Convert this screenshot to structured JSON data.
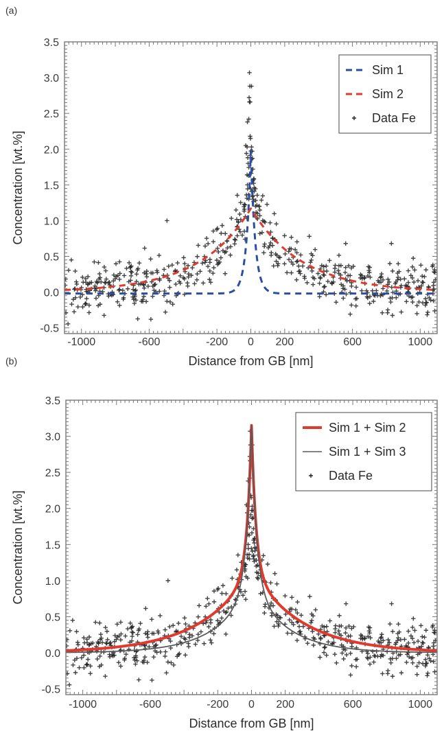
{
  "chart_data": [
    {
      "panel_label": "(a)",
      "type": "scatter",
      "title": "",
      "xlabel": "Distance from GB [nm]",
      "ylabel": "Concentration [wt.%]",
      "xlim": [
        -1100,
        1100
      ],
      "ylim": [
        -0.58,
        3.5
      ],
      "xticks": [
        -1000,
        -600,
        -200,
        0,
        200,
        600,
        1000
      ],
      "xtick_labels": [
        "-1000",
        "-600",
        "-200",
        "0",
        "200",
        "600",
        "1000"
      ],
      "yticks": [
        -0.5,
        0.0,
        0.5,
        1.0,
        1.5,
        2.0,
        2.5,
        3.0,
        3.5
      ],
      "ytick_labels": [
        "-0.5",
        "0.0",
        "0.5",
        "1.0",
        "1.5",
        "2.0",
        "2.5",
        "3.0",
        "3.5"
      ],
      "grid": false,
      "legend_position": "top-right",
      "series": [
        {
          "name": "Sim 1",
          "kind": "line",
          "style": "dashed",
          "color": "#2b4fa0",
          "model": {
            "type": "exp",
            "amplitude": 2.0,
            "decay_nm": 26,
            "offset": -0.02
          }
        },
        {
          "name": "Sim 2",
          "kind": "line",
          "style": "dashed",
          "color": "#e03a2f",
          "model": {
            "type": "exp",
            "amplitude": 1.17,
            "decay_nm": 300,
            "offset": 0.0
          }
        },
        {
          "name": "Data Fe",
          "kind": "scatter",
          "marker": "+",
          "color": "#222222",
          "data_ref": "fe_data"
        }
      ]
    },
    {
      "panel_label": "(b)",
      "type": "scatter",
      "title": "",
      "xlabel": "Distance from GB [nm]",
      "ylabel": "Concentration [wt.%]",
      "xlim": [
        -1100,
        1100
      ],
      "ylim": [
        -0.58,
        3.5
      ],
      "xticks": [
        -1000,
        -600,
        -200,
        0,
        200,
        600,
        1000
      ],
      "xtick_labels": [
        "-1000",
        "-600",
        "-200",
        "0",
        "200",
        "600",
        "1000"
      ],
      "yticks": [
        -0.5,
        0.0,
        0.5,
        1.0,
        1.5,
        2.0,
        2.5,
        3.0,
        3.5
      ],
      "ytick_labels": [
        "-0.5",
        "0.0",
        "0.5",
        "1.0",
        "1.5",
        "2.0",
        "2.5",
        "3.0",
        "3.5"
      ],
      "grid": false,
      "legend_position": "top-right",
      "series": [
        {
          "name": "Sim 1 + Sim 2",
          "kind": "line",
          "style": "solid-thick",
          "color": "#e03a2f",
          "model": {
            "type": "sum",
            "terms": [
              {
                "amplitude": 2.0,
                "decay_nm": 26
              },
              {
                "amplitude": 1.15,
                "decay_nm": 300
              }
            ],
            "offset": 0.0
          }
        },
        {
          "name": "Sim 1 + Sim 3",
          "kind": "line",
          "style": "solid-thin",
          "color": "#5a5a5a",
          "model": {
            "type": "sum",
            "terms": [
              {
                "amplitude": 2.2,
                "decay_nm": 30
              },
              {
                "amplitude": 0.95,
                "decay_nm": 210
              }
            ],
            "offset": 0.0
          }
        },
        {
          "name": "Data Fe",
          "kind": "scatter",
          "marker": "+",
          "color": "#222222",
          "data_ref": "fe_data"
        }
      ]
    }
  ],
  "fe_data": {
    "description": "Approximate Fe concentration profile across grain boundary (dense noisy point cloud, ~550 points)",
    "n_points": 560,
    "x_range": [
      -1100,
      1100
    ],
    "trend": {
      "amplitude_peak": 2.0,
      "decay_peak_nm": 30,
      "amplitude_tail": 1.1,
      "decay_tail_nm": 280
    },
    "noise_sd": 0.17,
    "peak_outliers": [
      {
        "x": -8,
        "y": 3.07
      },
      {
        "x": -6,
        "y": 2.88
      },
      {
        "x": 4,
        "y": 2.88
      },
      {
        "x": -10,
        "y": 2.72
      },
      {
        "x": -8,
        "y": 2.66
      },
      {
        "x": -4,
        "y": 2.66
      },
      {
        "x": -20,
        "y": 2.38
      },
      {
        "x": -12,
        "y": 2.42
      },
      {
        "x": -4,
        "y": 2.18
      },
      {
        "x": -2,
        "y": 2.15
      },
      {
        "x": -30,
        "y": 2.05
      },
      {
        "x": -22,
        "y": 2.03
      },
      {
        "x": 4,
        "y": 2.03
      },
      {
        "x": 8,
        "y": 1.97
      },
      {
        "x": -26,
        "y": 1.94
      },
      {
        "x": -18,
        "y": 1.88
      },
      {
        "x": 10,
        "y": 1.87
      },
      {
        "x": -16,
        "y": 1.8
      },
      {
        "x": 12,
        "y": 1.72
      },
      {
        "x": -22,
        "y": 1.64
      },
      {
        "x": 18,
        "y": 1.58
      },
      {
        "x": -20,
        "y": 1.5
      },
      {
        "x": 20,
        "y": 1.46
      },
      {
        "x": -26,
        "y": 1.36
      },
      {
        "x": -12,
        "y": 1.3
      },
      {
        "x": 14,
        "y": 1.3
      },
      {
        "x": -34,
        "y": 1.22
      },
      {
        "x": 28,
        "y": 1.2
      },
      {
        "x": -38,
        "y": 1.16
      },
      {
        "x": 40,
        "y": 1.1
      }
    ],
    "isolated_outliers": [
      {
        "x": -495,
        "y": 1.0
      },
      {
        "x": 70,
        "y": 1.0
      },
      {
        "x": 345,
        "y": 0.78
      },
      {
        "x": 560,
        "y": 0.68
      },
      {
        "x": 830,
        "y": 0.68
      },
      {
        "x": -590,
        "y": -0.38
      },
      {
        "x": -1060,
        "y": 0.45
      },
      {
        "x": 1075,
        "y": 0.38
      }
    ],
    "seed": 20240611
  },
  "panels_text": {
    "a_label": "(a)",
    "b_label": "(b)"
  }
}
